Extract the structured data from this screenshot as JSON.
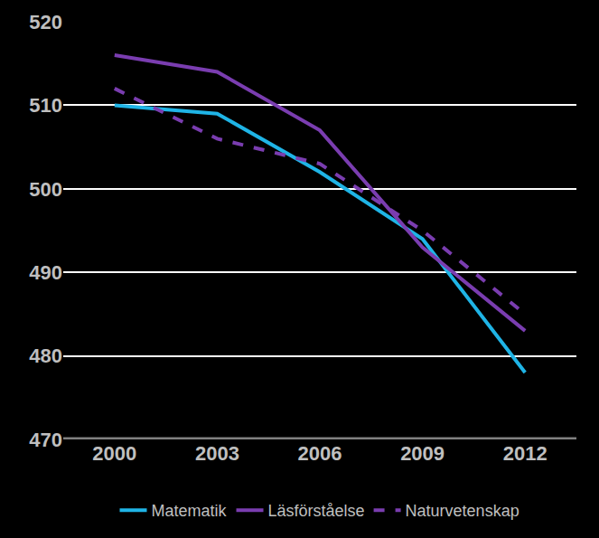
{
  "chart_data": {
    "type": "line",
    "categories": [
      "2000",
      "2003",
      "2006",
      "2009",
      "2012"
    ],
    "series": [
      {
        "name": "Matematik",
        "color": "#1fb4e6",
        "line_style": "solid",
        "values": [
          510,
          509,
          502,
          494,
          478
        ]
      },
      {
        "name": "Läsförståelse",
        "color": "#7a3db0",
        "line_style": "solid",
        "values": [
          516,
          514,
          507,
          493,
          483
        ]
      },
      {
        "name": "Naturvetenskap",
        "color": "#7a3db0",
        "line_style": "dash",
        "values": [
          512,
          506,
          503,
          495,
          485
        ]
      }
    ],
    "ylim": [
      470,
      520
    ],
    "yticks": [
      470,
      480,
      490,
      500,
      510,
      520
    ],
    "grid": true,
    "legend": "bottom"
  }
}
